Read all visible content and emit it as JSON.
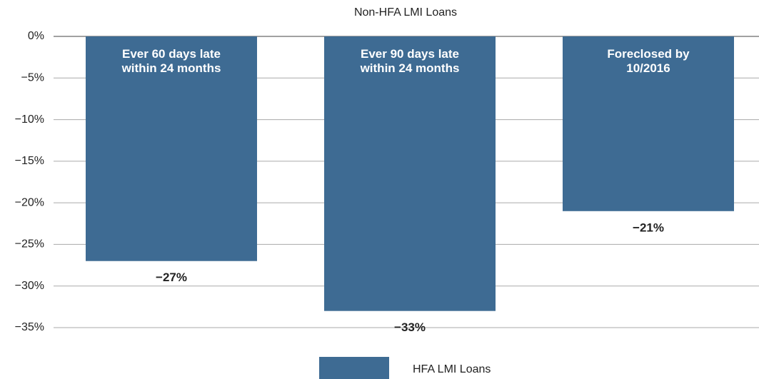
{
  "chart_data": {
    "type": "bar",
    "title": "Non-HFA LMI Loans",
    "categories": [
      "Ever 60 days late within 24 months",
      "Ever 90 days late within 24 months",
      "Foreclosed by 10/2016"
    ],
    "series": [
      {
        "name": "HFA LMI Loans",
        "color": "#3e6b93",
        "values": [
          -27,
          -33,
          -21
        ],
        "value_labels": [
          "−27%",
          "−33%",
          "−21%"
        ]
      }
    ],
    "ylim": [
      -35,
      0
    ],
    "yticks": [
      {
        "value": 0,
        "label": "0%"
      },
      {
        "value": -5,
        "label": "−5%"
      },
      {
        "value": -10,
        "label": "−10%"
      },
      {
        "value": -15,
        "label": "−15%"
      },
      {
        "value": -20,
        "label": "−20%"
      },
      {
        "value": -25,
        "label": "−25%"
      },
      {
        "value": -30,
        "label": "−30%"
      },
      {
        "value": -35,
        "label": "−35%"
      }
    ],
    "grid": true
  }
}
